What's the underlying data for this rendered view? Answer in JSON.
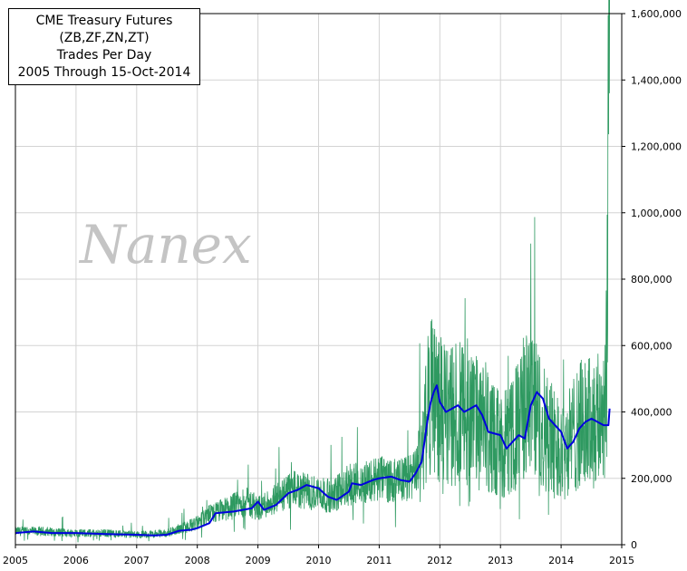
{
  "title": {
    "lines": [
      "CME Treasury Futures",
      "(ZB,ZF,ZN,ZT)",
      "Trades Per Day",
      "2005 Through 15-Oct-2014"
    ]
  },
  "watermark": "Nanex",
  "chart_data": {
    "type": "line",
    "xlim": [
      2005,
      2015
    ],
    "ylim": [
      0,
      1600000
    ],
    "x_ticks": [
      2005,
      2006,
      2007,
      2008,
      2009,
      2010,
      2011,
      2012,
      2013,
      2014,
      2015
    ],
    "x_tick_labels": [
      "2005",
      "2006",
      "2007",
      "2008",
      "2009",
      "2010",
      "2011",
      "2012",
      "2013",
      "2014",
      "2015"
    ],
    "y_ticks": [
      0,
      200000,
      400000,
      600000,
      800000,
      1000000,
      1200000,
      1400000,
      1600000
    ],
    "y_tick_labels": [
      "0",
      "200,000",
      "400,000",
      "600,000",
      "800,000",
      "1,000,000",
      "1,200,000",
      "1,400,000",
      "1,600,000"
    ],
    "grid": true,
    "series": [
      {
        "color": "#2e9960",
        "style": "daily",
        "x": [
          2005.0,
          2005.5,
          2006.0,
          2006.5,
          2007.0,
          2007.5,
          2007.75,
          2008.0,
          2008.2,
          2008.5,
          2008.8,
          2009.0,
          2009.3,
          2009.6,
          2010.0,
          2010.2,
          2010.5,
          2010.8,
          2011.0,
          2011.3,
          2011.6,
          2011.75,
          2011.85,
          2011.95,
          2012.1,
          2012.3,
          2012.5,
          2012.7,
          2012.9,
          2013.0,
          2013.2,
          2013.4,
          2013.55,
          2013.65,
          2013.8,
          2014.0,
          2014.1,
          2014.3,
          2014.5,
          2014.65,
          2014.72,
          2014.76,
          2014.79,
          2014.8
        ],
        "values": [
          40000,
          40000,
          35000,
          35000,
          30000,
          35000,
          50000,
          65000,
          90000,
          110000,
          130000,
          110000,
          140000,
          165000,
          155000,
          145000,
          180000,
          190000,
          200000,
          190000,
          210000,
          350000,
          470000,
          430000,
          380000,
          400000,
          390000,
          350000,
          320000,
          300000,
          320000,
          420000,
          440000,
          380000,
          330000,
          290000,
          300000,
          360000,
          370000,
          380000,
          420000,
          750000,
          1570000,
          1100000
        ]
      },
      {
        "color": "#0000dd",
        "style": "moving-average",
        "x": [
          2005.0,
          2005.3,
          2005.6,
          2006.0,
          2006.5,
          2007.0,
          2007.3,
          2007.5,
          2007.7,
          2007.9,
          2008.0,
          2008.2,
          2008.3,
          2008.6,
          2008.9,
          2009.0,
          2009.1,
          2009.3,
          2009.5,
          2009.65,
          2009.8,
          2010.0,
          2010.15,
          2010.3,
          2010.5,
          2010.55,
          2010.7,
          2010.9,
          2011.0,
          2011.2,
          2011.35,
          2011.5,
          2011.6,
          2011.7,
          2011.8,
          2011.85,
          2011.9,
          2011.95,
          2012.0,
          2012.1,
          2012.2,
          2012.3,
          2012.4,
          2012.5,
          2012.6,
          2012.7,
          2012.8,
          2013.0,
          2013.1,
          2013.2,
          2013.3,
          2013.4,
          2013.5,
          2013.6,
          2013.7,
          2013.8,
          2014.0,
          2014.1,
          2014.2,
          2014.3,
          2014.4,
          2014.5,
          2014.6,
          2014.7,
          2014.78,
          2014.8
        ],
        "values": [
          35000,
          40000,
          35000,
          35000,
          32000,
          30000,
          28000,
          30000,
          42000,
          45000,
          50000,
          65000,
          95000,
          100000,
          110000,
          130000,
          105000,
          120000,
          155000,
          165000,
          180000,
          170000,
          145000,
          135000,
          160000,
          185000,
          180000,
          195000,
          200000,
          205000,
          195000,
          190000,
          215000,
          250000,
          380000,
          430000,
          460000,
          480000,
          430000,
          400000,
          410000,
          420000,
          400000,
          410000,
          420000,
          390000,
          340000,
          330000,
          290000,
          310000,
          330000,
          320000,
          420000,
          460000,
          440000,
          380000,
          340000,
          290000,
          310000,
          350000,
          370000,
          380000,
          370000,
          360000,
          360000,
          410000
        ]
      }
    ]
  }
}
